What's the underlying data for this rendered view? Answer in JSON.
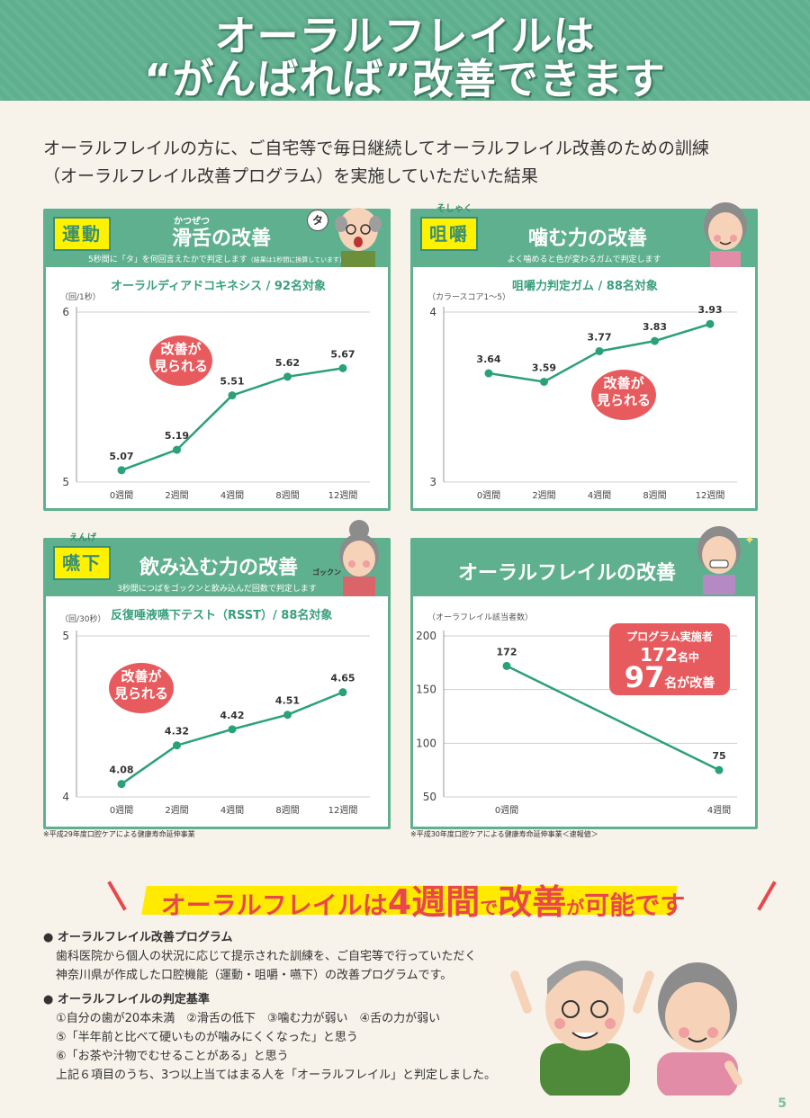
{
  "header": {
    "line1": "オーラルフレイルは",
    "line2": "“がんばれば”改善できます"
  },
  "intro": {
    "line1": "オーラルフレイルの方に、ご自宅等で毎日継続してオーラルフレイル改善のための訓練",
    "line2": "（オーラルフレイル改善プログラム）を実施していただいた結果"
  },
  "panels": [
    {
      "tag": "運動",
      "ruby": "かつぜつ",
      "title": "滑舌の改善",
      "sub": "5秒間に「タ」を何回言えたかで判定します",
      "sub_small": "（結果は1秒間に換算しています）",
      "chart_title": "オーラルディアドコキネシス / 92名対象",
      "unit": "（回/1秒）",
      "bubble": "タ",
      "callout": [
        "改善が",
        "見られる"
      ]
    },
    {
      "tag": "咀嚼",
      "ruby": "そしゃく",
      "title": "噛む力の改善",
      "sub": "よく噛めると色が変わるガムで判定します",
      "chart_title": "咀嚼力判定ガム / 88名対象",
      "unit": "（カラースコア1〜5）",
      "callout": [
        "改善が",
        "見られる"
      ]
    },
    {
      "tag": "嚥下",
      "ruby": "えんげ",
      "title": "飲み込む力の改善",
      "sub": "3秒間につばをゴックンと飲み込んだ回数で判定します",
      "chart_title": "反復唾液嚥下テスト（RSST）/ 88名対象",
      "unit": "（回/30秒）",
      "sfx": "ゴックン",
      "callout": [
        "改善が",
        "見られる"
      ]
    },
    {
      "title": "オーラルフレイルの改善",
      "unit": "（オーラフレイル該当者数）",
      "callout": {
        "line1": "プログラム実施者",
        "n1": "172",
        "u1": "名中",
        "n2": "97",
        "u2": "名が改善"
      }
    }
  ],
  "chart_data": [
    {
      "type": "line",
      "x": [
        "0週間",
        "2週間",
        "4週間",
        "8週間",
        "12週間"
      ],
      "series": [
        {
          "values": [
            5.07,
            5.19,
            5.51,
            5.62,
            5.67
          ]
        }
      ],
      "ylim": [
        5,
        6
      ],
      "yticks": [
        5,
        6
      ],
      "color": "#2aa07b"
    },
    {
      "type": "line",
      "x": [
        "0週間",
        "2週間",
        "4週間",
        "8週間",
        "12週間"
      ],
      "series": [
        {
          "values": [
            3.64,
            3.59,
            3.77,
            3.83,
            3.93
          ]
        }
      ],
      "ylim": [
        3,
        4
      ],
      "yticks": [
        3,
        4
      ],
      "color": "#2aa07b"
    },
    {
      "type": "line",
      "x": [
        "0週間",
        "2週間",
        "4週間",
        "8週間",
        "12週間"
      ],
      "series": [
        {
          "values": [
            4.08,
            4.32,
            4.42,
            4.51,
            4.65
          ]
        }
      ],
      "ylim": [
        4,
        5
      ],
      "yticks": [
        4,
        5
      ],
      "color": "#2aa07b"
    },
    {
      "type": "line",
      "x": [
        "0週間",
        "4週間"
      ],
      "series": [
        {
          "values": [
            172,
            75
          ]
        }
      ],
      "ylim": [
        50,
        200
      ],
      "yticks": [
        50,
        100,
        150,
        200
      ],
      "color": "#2aa07b"
    }
  ],
  "notes": {
    "left": "※平成29年度口腔ケアによる健康寿命延伸事業",
    "right": "※平成30年度口腔ケアによる健康寿命延伸事業＜速報値＞"
  },
  "conclusion": {
    "p1": "オーラルフレイルは",
    "p2": "4週間",
    "p3": "で",
    "p4": "改善",
    "p5": "が",
    "p6": "可能です"
  },
  "bullets": {
    "h1": "オーラルフレイル改善プログラム",
    "b1a": "歯科医院から個人の状況に応じて提示された訓練を、ご自宅等で行っていただく",
    "b1b": "神奈川県が作成した口腔機能（運動・咀嚼・嚥下）の改善プログラムです。",
    "h2": "オーラルフレイルの判定基準",
    "c1": "①自分の歯が20本未満　②滑舌の低下　③噛む力が弱い　④舌の力が弱い",
    "c2": "⑤「半年前と比べて硬いものが噛みにくくなった」と思う",
    "c3": "⑥「お茶や汁物でむせることがある」と思う",
    "c4": "上記６項目のうち、3つ以上当てはまる人を「オーラルフレイル」と判定しました。"
  },
  "page_number": "5"
}
